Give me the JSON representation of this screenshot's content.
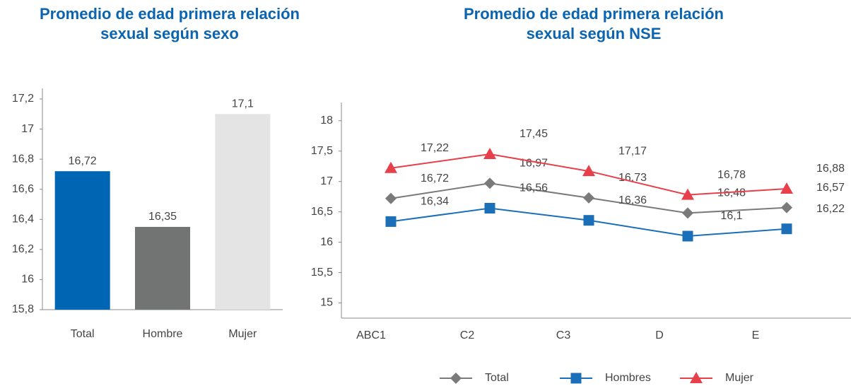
{
  "chart_data": [
    {
      "type": "bar",
      "title": "Promedio de edad primera relación sexual según sexo",
      "categories": [
        "Total",
        "Hombre",
        "Mujer"
      ],
      "values": [
        16.72,
        16.35,
        17.1
      ],
      "value_labels": [
        "16,72",
        "16,35",
        "17,1"
      ],
      "colors": [
        "#0066b3",
        "#727474",
        "#e4e4e4"
      ],
      "ylim": [
        15.8,
        17.2
      ],
      "yticks": [
        {
          "value": 15.8,
          "label": "15,8"
        },
        16,
        {
          "value": 16.2,
          "label": "16,2"
        },
        {
          "value": 16.4,
          "label": "16,4"
        },
        {
          "value": 16.6,
          "label": "16,6"
        },
        {
          "value": 16.8,
          "label": "16,8"
        },
        17,
        {
          "value": 17.2,
          "label": "17,2"
        }
      ],
      "grid": false
    },
    {
      "type": "line",
      "title": "Promedio de edad primera relación sexual según NSE",
      "categories": [
        "ABC1",
        "C2",
        "C3",
        "D",
        "E"
      ],
      "series": [
        {
          "name": "Total",
          "color": "#7a7a7a",
          "marker": "diamond",
          "values": [
            16.72,
            16.97,
            16.73,
            16.48,
            16.57
          ],
          "value_labels": [
            "16,72",
            "16,97",
            "16,73",
            "16,48",
            "16,57"
          ]
        },
        {
          "name": "Hombres",
          "color": "#1a6fb8",
          "marker": "square",
          "values": [
            16.34,
            16.56,
            16.36,
            16.1,
            16.22
          ],
          "value_labels": [
            "16,34",
            "16,56",
            "16,36",
            "16,1",
            "16,22"
          ]
        },
        {
          "name": "Mujer",
          "color": "#e8404a",
          "marker": "triangle",
          "values": [
            17.22,
            17.45,
            17.17,
            16.78,
            16.88
          ],
          "value_labels": [
            "17,22",
            "17,45",
            "17,17",
            "16,78",
            "16,88"
          ]
        }
      ],
      "ylim": [
        14.75,
        18.3
      ],
      "yticks": [
        15,
        {
          "value": 15.5,
          "label": "15,5"
        },
        16,
        {
          "value": 16.5,
          "label": "16,5"
        },
        17,
        {
          "value": 17.5,
          "label": "17,5"
        },
        18
      ],
      "grid": false,
      "legend": "bottom"
    }
  ]
}
